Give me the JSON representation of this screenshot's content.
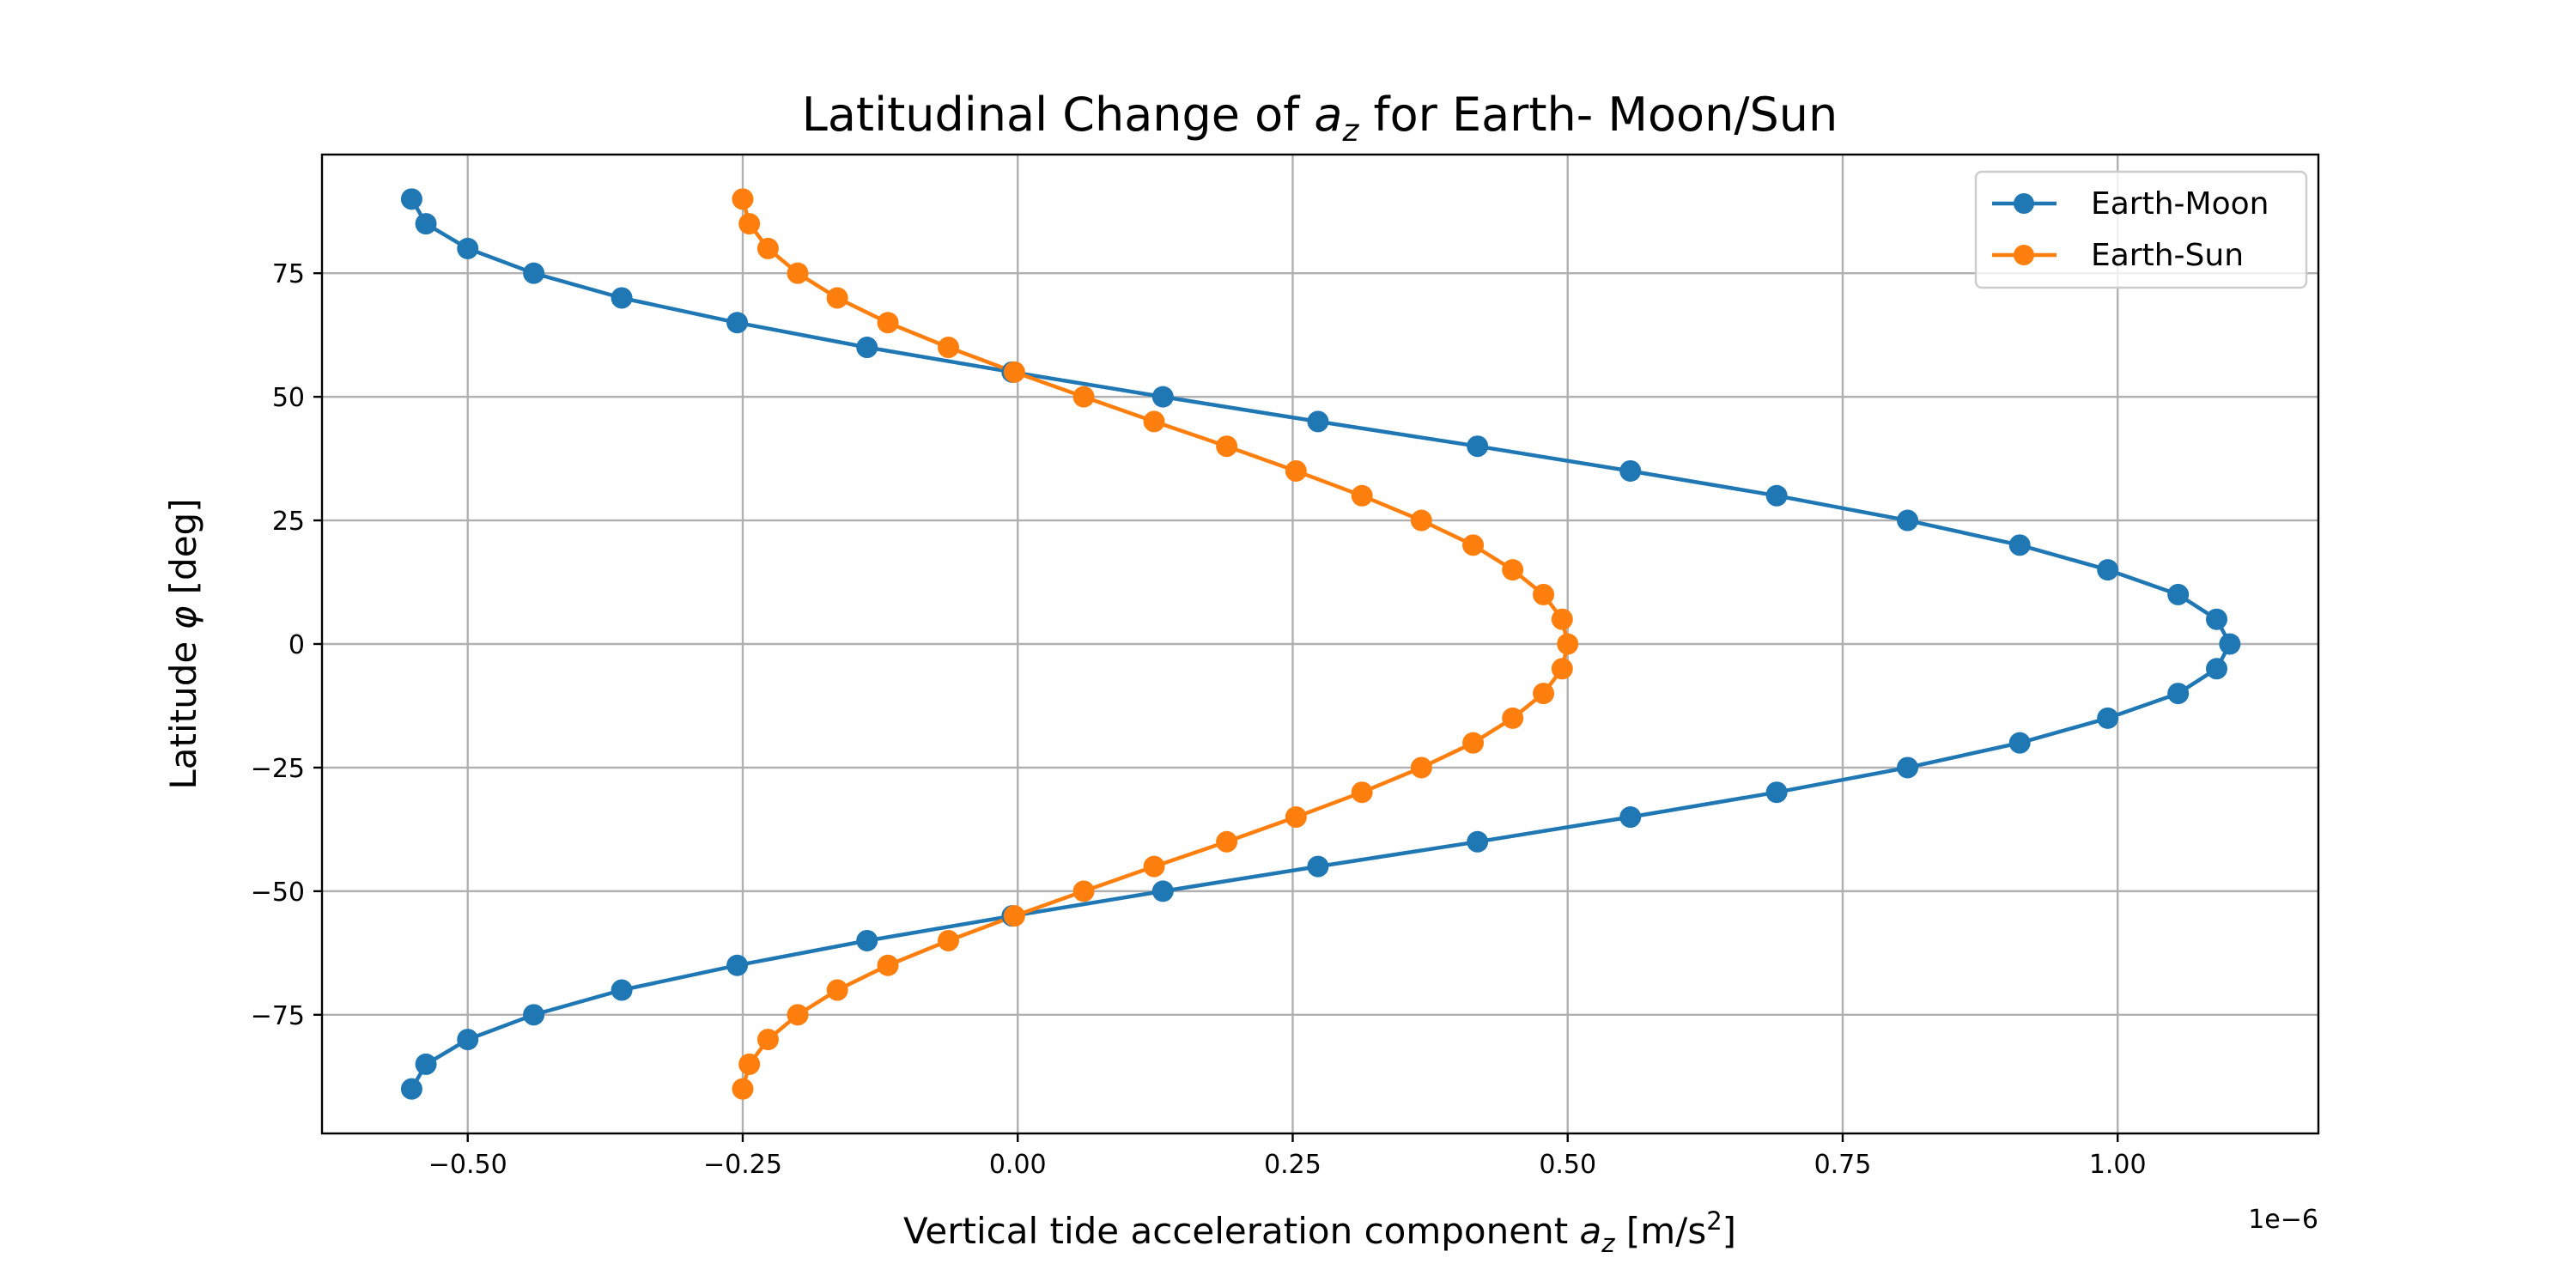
{
  "chart_data": {
    "type": "line",
    "title_prefix": "Latitudinal Change of ",
    "title_var": "a",
    "title_var_sub": "z",
    "title_suffix": " for Earth- Moon/Sun",
    "xlabel_prefix": "Vertical tide acceleration component ",
    "xlabel_var": "a",
    "xlabel_var_sub": "z",
    "xlabel_unit_open": " [m/s",
    "xlabel_unit_sup": "2",
    "xlabel_unit_close": "]",
    "ylabel_prefix": "Latitude ",
    "ylabel_var": "φ",
    "ylabel_suffix": " [deg]",
    "x_offset_label": "1e−6",
    "x_scale": 1e-06,
    "xlim": [
      -0.6325,
      1.1825
    ],
    "ylim": [
      -99,
      99
    ],
    "x_ticks": [
      -0.5,
      -0.25,
      0.0,
      0.25,
      0.5,
      0.75,
      1.0
    ],
    "x_tick_labels": [
      "−0.50",
      "−0.25",
      "0.00",
      "0.25",
      "0.50",
      "0.75",
      "1.00"
    ],
    "y_ticks": [
      -75,
      -50,
      -25,
      0,
      25,
      50,
      75
    ],
    "y_tick_labels": [
      "−75",
      "−50",
      "−25",
      "0",
      "25",
      "50",
      "75"
    ],
    "grid": true,
    "legend_position": "top-right",
    "colors": {
      "moon": "#1f77b4",
      "sun": "#ff7f0e"
    },
    "y": [
      90,
      85,
      80,
      75,
      70,
      65,
      60,
      55,
      50,
      45,
      40,
      35,
      30,
      25,
      20,
      15,
      10,
      5,
      0,
      -5,
      -10,
      -15,
      -20,
      -25,
      -30,
      -35,
      -40,
      -45,
      -50,
      -55,
      -60,
      -65,
      -70,
      -75,
      -80,
      -85,
      -90
    ],
    "series": [
      {
        "name": "Earth-Moon",
        "color": "#1f77b4",
        "x": [
          -0.551,
          -0.538,
          -0.5,
          -0.44,
          -0.36,
          -0.255,
          -0.137,
          -0.005,
          0.132,
          0.273,
          0.418,
          0.557,
          0.69,
          0.809,
          0.911,
          0.991,
          1.055,
          1.09,
          1.102,
          1.09,
          1.055,
          0.991,
          0.911,
          0.809,
          0.69,
          0.557,
          0.418,
          0.273,
          0.132,
          -0.005,
          -0.137,
          -0.255,
          -0.36,
          -0.44,
          -0.5,
          -0.538,
          -0.551
        ]
      },
      {
        "name": "Earth-Sun",
        "color": "#ff7f0e",
        "x": [
          -0.25,
          -0.244,
          -0.227,
          -0.2,
          -0.164,
          -0.118,
          -0.063,
          -0.003,
          0.06,
          0.124,
          0.19,
          0.253,
          0.313,
          0.367,
          0.414,
          0.45,
          0.478,
          0.495,
          0.5,
          0.495,
          0.478,
          0.45,
          0.414,
          0.367,
          0.313,
          0.253,
          0.19,
          0.124,
          0.06,
          -0.003,
          -0.063,
          -0.118,
          -0.164,
          -0.2,
          -0.227,
          -0.244,
          -0.25
        ]
      }
    ]
  }
}
